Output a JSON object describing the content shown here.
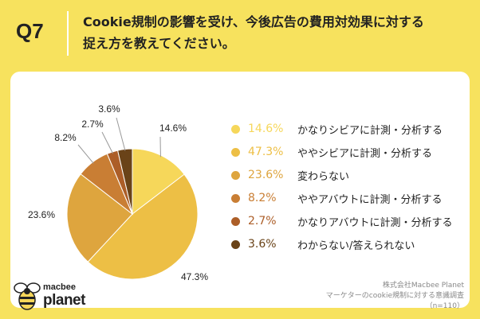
{
  "header": {
    "question_number": "Q7",
    "title_line1": "Cookie規制の影響を受け、今後広告の費用対効果に対する",
    "title_line2": "捉え方を教えてください。"
  },
  "chart_data": {
    "type": "pie",
    "title": "Cookie規制の影響を受け、今後広告の費用対効果に対する捉え方を教えてください。",
    "categories": [
      "かなりシビアに計測・分析する",
      "ややシビアに計測・分析する",
      "変わらない",
      "ややアバウトに計測・分析する",
      "かなりアバウトに計測・分析する",
      "わからない/答えられない"
    ],
    "values": [
      14.6,
      47.3,
      23.6,
      8.2,
      2.7,
      3.6
    ],
    "value_labels": [
      "14.6%",
      "47.3%",
      "23.6%",
      "8.2%",
      "2.7%",
      "3.6%"
    ],
    "colors": [
      "#F6D75A",
      "#EDBF45",
      "#DEA53E",
      "#C97E34",
      "#AC5E28",
      "#6A4318"
    ],
    "start": "12 o'clock, clockwise",
    "legend": "right"
  },
  "logo": {
    "line1": "macbee",
    "line2": "planet"
  },
  "source": {
    "company": "株式会社Macbee Planet",
    "survey": "マーケターのcookie規制に対する意識調査",
    "sample": "（n=110）"
  }
}
